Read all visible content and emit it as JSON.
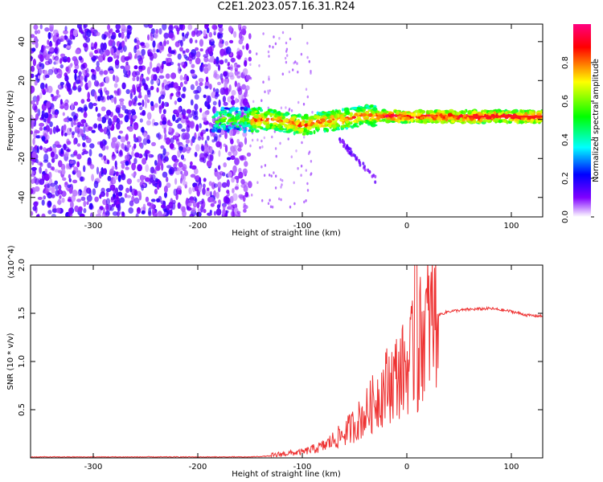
{
  "title": "C2E1.2023.057.16.31.R24",
  "colors": {
    "snr_line": "#ee3333",
    "colorbar": [
      "#ff0080",
      "#ff0000",
      "#ffff00",
      "#00ff00",
      "#00ffff",
      "#0000ff",
      "#8000ff",
      "#ffffff"
    ]
  },
  "chart_data": [
    {
      "type": "heatmap",
      "title": "",
      "xlabel": "Height of straight line (km)",
      "ylabel": "Frequency (Hz)",
      "xlim": [
        -360,
        130
      ],
      "ylim": [
        -50,
        49
      ],
      "xticks": [
        -300,
        -200,
        -100,
        0,
        100
      ],
      "yticks": [
        -40,
        -20,
        0,
        20,
        40
      ],
      "colorbar": {
        "label": "Normalized spectral amplitude",
        "range": [
          0.0,
          1.0
        ],
        "ticks": [
          0.0,
          0.2,
          0.4,
          0.6,
          0.8
        ]
      },
      "features": [
        {
          "region": "noise",
          "x_range": [
            -360,
            -150
          ],
          "freq_range": [
            -50,
            49
          ],
          "amplitude": "low (0.1-0.2)"
        },
        {
          "region": "signal_band",
          "x_range": [
            -185,
            130
          ],
          "freq_center": 0,
          "freq_halfwidth": 4,
          "amplitude": "0.3-1.0"
        },
        {
          "region": "tail",
          "x_range": [
            -65,
            -28
          ],
          "freq_range": [
            -32,
            -10
          ],
          "amplitude": "low"
        }
      ]
    },
    {
      "type": "line",
      "title": "",
      "xlabel": "Height of straight line (km)",
      "ylabel": "SNR (10 * v/v)",
      "y_multiplier": "(x10^4)",
      "xlim": [
        -360,
        130
      ],
      "ylim": [
        0,
        2.0
      ],
      "xticks": [
        -300,
        -200,
        -100,
        0,
        100
      ],
      "yticks": [
        0.5,
        1.0,
        1.5,
        2.0
      ],
      "series": [
        {
          "name": "",
          "x": [
            -360,
            -300,
            -200,
            -150,
            -130,
            -120,
            -100,
            -80,
            -60,
            -40,
            -30,
            -20,
            -10,
            -5,
            0,
            5,
            8,
            10,
            12,
            15,
            20,
            30,
            40,
            50,
            60,
            80,
            100,
            115,
            130
          ],
          "y": [
            0.01,
            0.01,
            0.01,
            0.01,
            0.02,
            0.04,
            0.06,
            0.12,
            0.25,
            0.45,
            0.6,
            0.75,
            0.85,
            0.9,
            0.95,
            1.05,
            1.1,
            0.65,
            1.2,
            1.3,
            1.4,
            1.48,
            1.52,
            1.53,
            1.54,
            1.55,
            1.52,
            1.48,
            1.47
          ]
        }
      ],
      "annotations": [
        {
          "x": 9,
          "y": 2.0,
          "note": "spike"
        }
      ]
    }
  ]
}
